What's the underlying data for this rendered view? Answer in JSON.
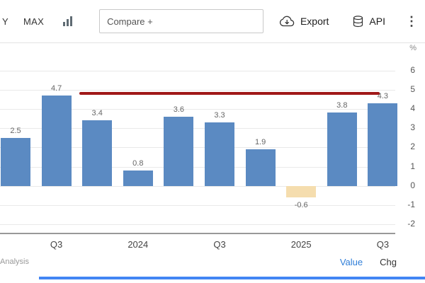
{
  "toolbar": {
    "range_buttons": [
      {
        "label": "Y"
      },
      {
        "label": "MAX"
      }
    ],
    "compare_placeholder": "Compare +",
    "export_label": "Export",
    "api_label": "API",
    "kebab_glyph": "⋮"
  },
  "chart_data": {
    "type": "bar",
    "unit": "%",
    "values": [
      2.5,
      4.7,
      3.4,
      0.8,
      3.6,
      3.3,
      1.9,
      -0.6,
      3.8,
      4.3
    ],
    "x_ticks": [
      {
        "index": 1,
        "label": "Q3"
      },
      {
        "index": 3,
        "label": "2024"
      },
      {
        "index": 5,
        "label": "Q3"
      },
      {
        "index": 7,
        "label": "2025"
      },
      {
        "index": 9,
        "label": "Q3"
      }
    ],
    "y_ticks": [
      6,
      5,
      4,
      3,
      2,
      1,
      0,
      -1,
      -2
    ],
    "ylim": [
      -2.5,
      6.9
    ],
    "grid": true,
    "legend": "none",
    "bar_color": "#5b8ac2",
    "negative_bar_color": "#f5ddae",
    "annotation_line": {
      "value": 4.8,
      "color": "#a01818",
      "x_start_frac": 0.2,
      "x_end_frac": 0.96
    }
  },
  "footer": {
    "source_text": "Analysis",
    "value_label": "Value",
    "chg_label": "Chg"
  }
}
